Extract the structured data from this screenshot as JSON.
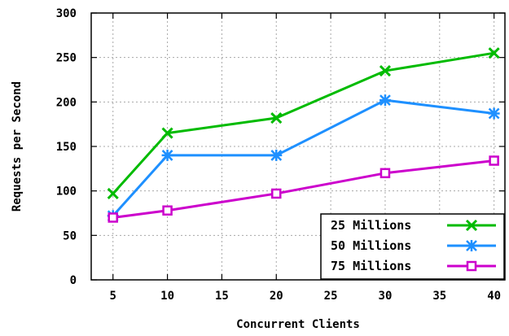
{
  "chart_data": {
    "type": "line",
    "xlabel": "Concurrent Clients",
    "ylabel": "Requests per Second",
    "xlim": [
      3,
      41
    ],
    "ylim": [
      0,
      300
    ],
    "xticks": [
      "5",
      "10",
      "15",
      "20",
      "25",
      "30",
      "35",
      "40"
    ],
    "yticks": [
      "0",
      "50",
      "100",
      "150",
      "200",
      "250",
      "300"
    ],
    "grid": true,
    "legend_position": "bottom-right",
    "series": [
      {
        "name": "25 Millions",
        "color": "#00bb00",
        "marker": "x",
        "x": [
          5,
          10,
          20,
          30,
          40
        ],
        "y": [
          97,
          165,
          182,
          235,
          255
        ]
      },
      {
        "name": "50 Millions",
        "color": "#1e90ff",
        "marker": "asterisk",
        "x": [
          5,
          10,
          20,
          30,
          40
        ],
        "y": [
          72,
          140,
          140,
          202,
          187
        ]
      },
      {
        "name": "75 Millions",
        "color": "#cc00cc",
        "marker": "square",
        "x": [
          5,
          10,
          20,
          30,
          40
        ],
        "y": [
          70,
          78,
          97,
          120,
          134
        ]
      }
    ]
  }
}
